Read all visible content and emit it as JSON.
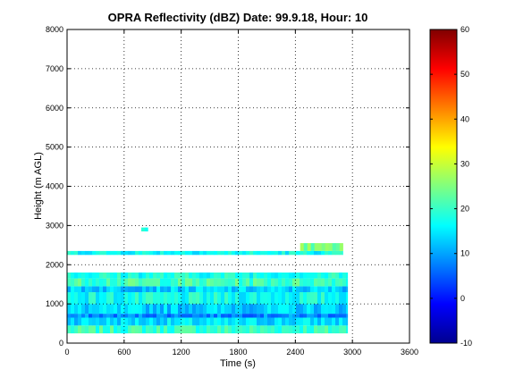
{
  "chart_data": {
    "type": "heatmap",
    "title": "OPRA Reflectivity (dBZ)  Date: 99.9.18, Hour: 10",
    "xlabel": "Time (s)",
    "ylabel": "Height (m AGL)",
    "xlim": [
      0,
      3600
    ],
    "ylim": [
      0,
      8000
    ],
    "xticks": [
      0,
      600,
      1200,
      1800,
      2400,
      3000,
      3600
    ],
    "yticks": [
      0,
      1000,
      2000,
      3000,
      4000,
      5000,
      6000,
      7000,
      8000
    ],
    "grid": true,
    "colorbar": {
      "range": [
        -10,
        60
      ],
      "ticks": [
        -10,
        0,
        10,
        20,
        30,
        40,
        50,
        60
      ],
      "colormap": "jet"
    },
    "layers": [
      {
        "height_range": [
          250,
          450
        ],
        "time_range": [
          0,
          2950
        ],
        "dbz": 20
      },
      {
        "height_range": [
          450,
          650
        ],
        "time_range": [
          0,
          2950
        ],
        "dbz": 14
      },
      {
        "height_range": [
          650,
          750
        ],
        "time_range": [
          0,
          2950
        ],
        "dbz": 8
      },
      {
        "height_range": [
          750,
          1000
        ],
        "time_range": [
          0,
          2950
        ],
        "dbz": 13
      },
      {
        "height_range": [
          1000,
          1300
        ],
        "time_range": [
          0,
          2950
        ],
        "dbz": 17
      },
      {
        "height_range": [
          1300,
          1450
        ],
        "time_range": [
          0,
          2950
        ],
        "dbz": 13
      },
      {
        "height_range": [
          1450,
          1650
        ],
        "time_range": [
          0,
          2950
        ],
        "dbz": 21
      },
      {
        "height_range": [
          1650,
          1800
        ],
        "time_range": [
          0,
          2950
        ],
        "dbz": 18
      },
      {
        "height_range": [
          2250,
          2350
        ],
        "time_range": [
          0,
          2900
        ],
        "dbz": 17
      },
      {
        "height_range": [
          2350,
          2550
        ],
        "time_range": [
          2450,
          2900
        ],
        "dbz": 24
      },
      {
        "height_range": [
          2850,
          2950
        ],
        "time_range": [
          780,
          850
        ],
        "dbz": 18
      }
    ]
  }
}
